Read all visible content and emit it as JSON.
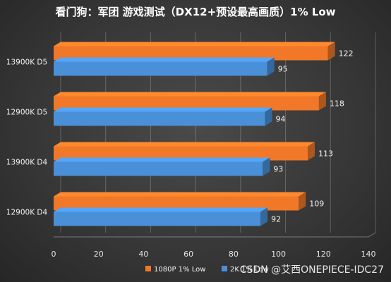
{
  "chart_data": {
    "type": "bar",
    "orientation": "horizontal",
    "title": "看门狗：军团 游戏测试（DX12+预设最高画质）1% Low",
    "categories": [
      "13900K D5",
      "12900K D5",
      "13900K D4",
      "12900K D4"
    ],
    "series": [
      {
        "name": "1080P 1% Low",
        "values": [
          122,
          118,
          113,
          109
        ],
        "color": "#f07828"
      },
      {
        "name": "2K 1% Low",
        "values": [
          95,
          94,
          93,
          92
        ],
        "color": "#4a90d9"
      }
    ],
    "xlim": [
      0,
      140
    ],
    "xticks": [
      0,
      20,
      40,
      60,
      80,
      100,
      120,
      140
    ],
    "grid": true,
    "legend_position": "bottom",
    "style": "3d"
  },
  "watermark": "CSDN @艾西ONEPIECE-IDC27"
}
